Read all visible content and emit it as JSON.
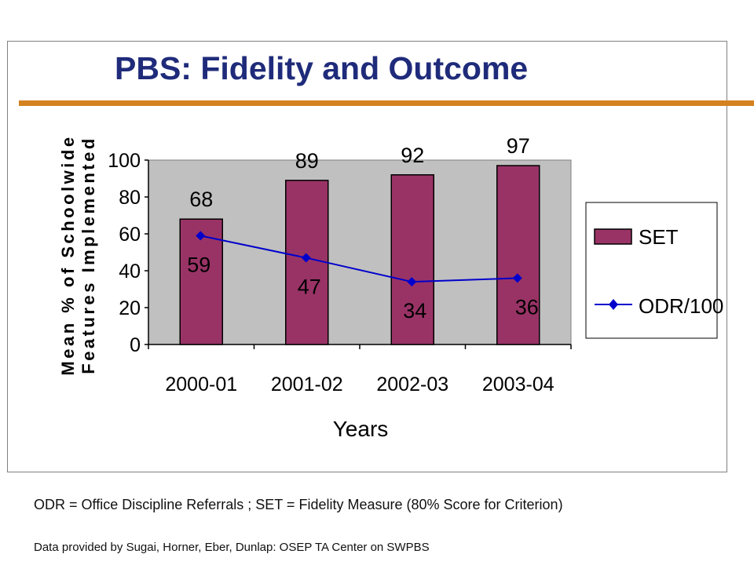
{
  "slide": {
    "title": "PBS: Fidelity and Outcome",
    "footnote": "ODR = Office Discipline Referrals ; SET = Fidelity Measure (80% Score for Criterion)",
    "credit": "Data provided by Sugai, Horner, Eber, Dunlap: OSEP TA Center on SWPBS"
  },
  "colors": {
    "title": "#1f2b7a",
    "rule": "#d4821f",
    "plot_background": "#c0c0c0",
    "bar": "#993366",
    "line": "#0000cc"
  },
  "chart_data": {
    "type": "bar",
    "categories": [
      "2000-01",
      "2001-02",
      "2002-03",
      "2003-04"
    ],
    "series": [
      {
        "name": "SET",
        "type": "bar",
        "values": [
          68,
          89,
          92,
          97
        ],
        "labels": [
          "68",
          "89",
          "92",
          "97"
        ]
      },
      {
        "name": "ODR/100",
        "type": "line",
        "marker": "diamond",
        "values": [
          59,
          47,
          34,
          36
        ],
        "labels": [
          "59",
          "47",
          "34",
          "36"
        ]
      }
    ],
    "xlabel": "Years",
    "ylabel_line1": "Mean % of Schoolwide",
    "ylabel_line2": "Features Implemented",
    "ylim": [
      0,
      100
    ],
    "yticks": [
      0,
      20,
      40,
      60,
      80,
      100
    ],
    "grid": false,
    "legend_position": "right"
  }
}
